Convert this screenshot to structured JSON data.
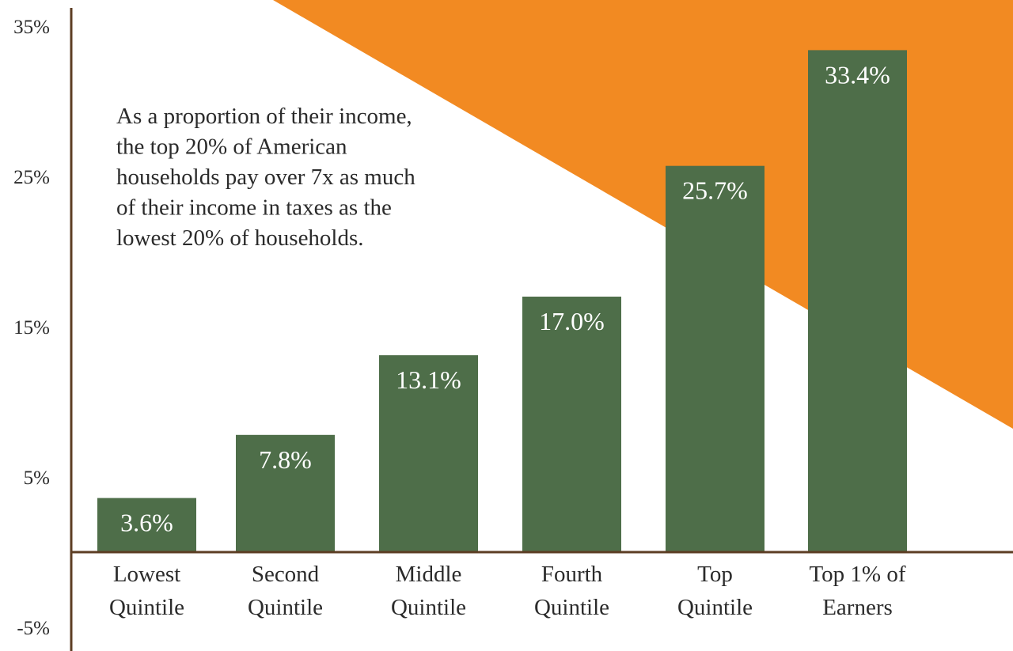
{
  "chart_data": {
    "type": "bar",
    "categories": [
      [
        "Lowest",
        "Quintile"
      ],
      [
        "Second",
        "Quintile"
      ],
      [
        "Middle",
        "Quintile"
      ],
      [
        "Fourth",
        "Quintile"
      ],
      [
        "Top",
        "Quintile"
      ],
      [
        "Top 1% of",
        "Earners"
      ]
    ],
    "values": [
      3.6,
      7.8,
      13.1,
      17.0,
      25.7,
      33.4
    ],
    "value_labels": [
      "3.6%",
      "7.8%",
      "13.1%",
      "17.0%",
      "25.7%",
      "33.4%"
    ],
    "y_ticks": [
      35,
      25,
      15,
      5,
      -5
    ],
    "y_tick_labels": [
      "35%",
      "25%",
      "15%",
      "5%",
      "-5%"
    ],
    "ylim": [
      -5,
      35
    ],
    "annotation": [
      "As a proportion of their income,",
      "the top 20% of American",
      "households pay over 7x as much",
      "of their income in taxes as the",
      "lowest 20% of households."
    ],
    "grid": false,
    "legend": "none"
  },
  "colors": {
    "bar": "#4e6e49",
    "axis": "#5c3d23",
    "background_shape": "#f28a22",
    "value_label": "#ffffff",
    "text": "#2b2b2b"
  }
}
